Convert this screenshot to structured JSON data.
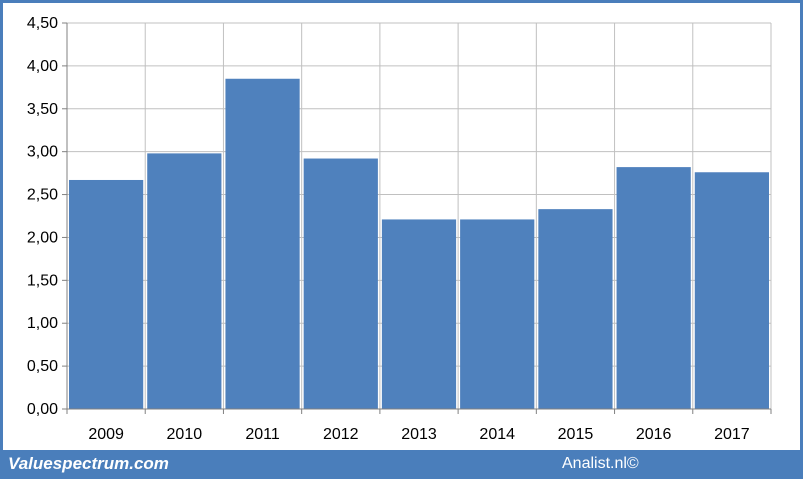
{
  "chart_data": {
    "type": "bar",
    "categories": [
      "2009",
      "2010",
      "2011",
      "2012",
      "2013",
      "2014",
      "2015",
      "2016",
      "2017"
    ],
    "values": [
      2.67,
      2.98,
      3.85,
      2.92,
      2.21,
      2.21,
      2.33,
      2.82,
      2.76
    ],
    "title": "",
    "xlabel": "",
    "ylabel": "",
    "ylim": [
      0,
      4.5
    ],
    "yticks": [
      "0,00",
      "0,50",
      "1,00",
      "1,50",
      "2,00",
      "2,50",
      "3,00",
      "3,50",
      "4,00",
      "4,50"
    ],
    "grid": true,
    "legend": "none",
    "bar_color": "#4f81bd"
  },
  "footer": {
    "site": "Valuespectrum.com",
    "credit": "Analist.nl©"
  },
  "colors": {
    "frame": "#4a7ebb",
    "bar": "#4f81bd",
    "grid": "#c0c0c0"
  }
}
